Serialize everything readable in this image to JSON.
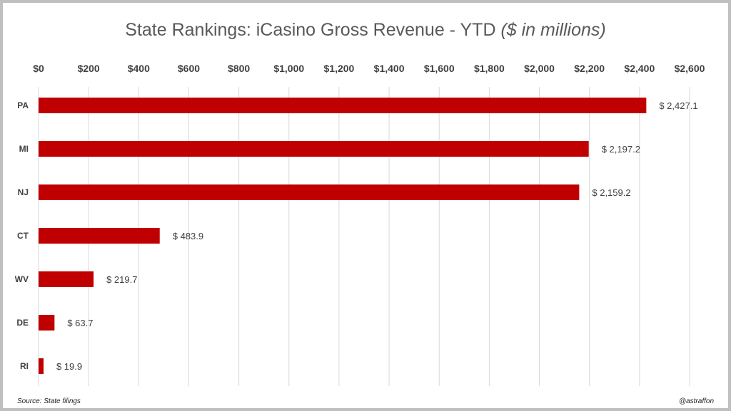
{
  "chart_data": {
    "type": "bar",
    "orientation": "horizontal",
    "title": "State Rankings: iCasino Gross Revenue - YTD",
    "title_suffix": "($ in millions)",
    "categories": [
      "PA",
      "MI",
      "NJ",
      "CT",
      "WV",
      "DE",
      "RI"
    ],
    "values": [
      2427.1,
      2197.2,
      2159.2,
      483.9,
      219.7,
      63.7,
      19.9
    ],
    "data_labels": [
      "$ 2,427.1",
      "$ 2,197.2",
      "$ 2,159.2",
      "$ 483.9",
      "$ 219.7",
      "$ 63.7",
      "$ 19.9"
    ],
    "xlim": [
      0,
      2600
    ],
    "x_ticks": [
      "$0",
      "$200",
      "$400",
      "$600",
      "$800",
      "$1,000",
      "$1,200",
      "$1,400",
      "$1,600",
      "$1,800",
      "$2,000",
      "$2,200",
      "$2,400",
      "$2,600"
    ],
    "x_axis_position": "top",
    "grid": true,
    "bar_color": "#c00000",
    "grid_color": "#d9d9d9"
  },
  "footer": {
    "source": "Source: State filings",
    "credit": "@astraffon"
  }
}
